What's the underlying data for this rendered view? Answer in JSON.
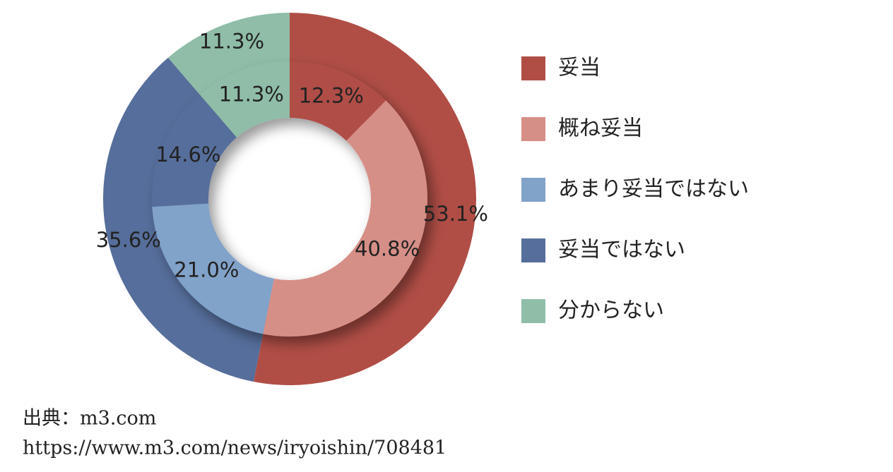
{
  "chart_data": {
    "type": "donut",
    "categories": [
      "妥当",
      "概ね妥当",
      "あまり妥当ではない",
      "妥当ではない",
      "分からない"
    ],
    "colors": [
      "#b04e46",
      "#d68f87",
      "#81a2c9",
      "#566e9b",
      "#8fbda8"
    ],
    "series": [
      {
        "values": [
          53.1,
          null,
          null,
          35.6,
          11.3
        ],
        "value_labels": [
          "53.1%",
          null,
          null,
          "35.6%",
          "11.3%"
        ]
      },
      {
        "values": [
          12.3,
          40.8,
          21.0,
          14.6,
          11.3
        ],
        "value_labels": [
          "12.3%",
          "40.8%",
          "21.0%",
          "14.6%",
          "11.3%"
        ]
      }
    ],
    "legend": "right"
  },
  "source": {
    "line1": "出典：m3.com",
    "line2": "https://www.m3.com/news/iryoishin/708481"
  }
}
